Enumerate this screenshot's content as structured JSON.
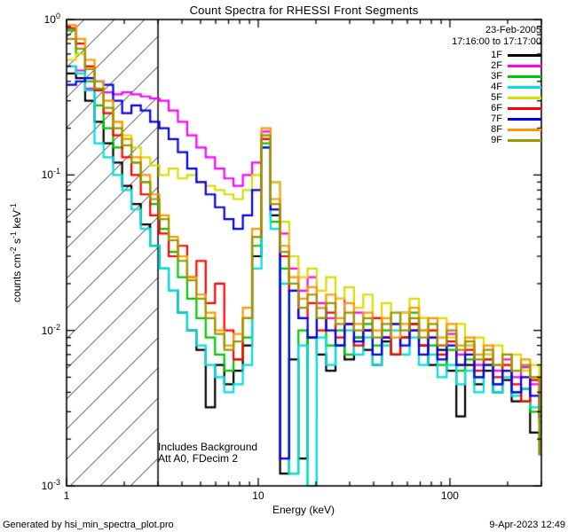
{
  "header": {
    "date": "23-Feb-2005",
    "time_range": "17:16:00 to 17:17:00"
  },
  "annotations": {
    "line1": "Includes Background",
    "line2": "Att A0, FDecim 2"
  },
  "footer": {
    "left": "Generated by hsi_min_spectra_plot.pro",
    "right": "9-Apr-2023 12:49"
  },
  "chart_data": {
    "type": "line",
    "title": "Count Spectra for RHESSI Front Segments",
    "xlabel": "Energy (keV)",
    "ylabel": "counts cm-2 s-1 keV-1",
    "ylabel_parts": [
      {
        "t": "counts cm"
      },
      {
        "s": "-2"
      },
      {
        "t": " s"
      },
      {
        "s": "-1"
      },
      {
        "t": " keV"
      },
      {
        "s": "-1"
      }
    ],
    "xscale": "log",
    "yscale": "log",
    "xlim": [
      1,
      300
    ],
    "ylim": [
      0.001,
      1
    ],
    "grid": false,
    "legend_position": "top-right",
    "hatch_xmax": 3,
    "x_ticks": [
      {
        "value": 1,
        "label": "1"
      },
      {
        "value": 10,
        "label": "10"
      },
      {
        "value": 100,
        "label": "100"
      }
    ],
    "y_ticks": [
      {
        "base": "10",
        "exp": "0"
      },
      {
        "base": "10",
        "exp": "-1"
      },
      {
        "base": "10",
        "exp": "-2"
      },
      {
        "base": "10",
        "exp": "-3"
      }
    ],
    "energy_kev": [
      1.0,
      1.12,
      1.25,
      1.4,
      1.56,
      1.75,
      1.95,
      2.18,
      2.44,
      2.73,
      3.05,
      3.41,
      3.81,
      4.26,
      4.76,
      5.32,
      5.95,
      6.65,
      7.43,
      8.31,
      9.29,
      10.4,
      11.6,
      13.0,
      14.5,
      16.2,
      18.1,
      20.2,
      22.6,
      25.3,
      28.2,
      31.6,
      35.3,
      39.5,
      44.1,
      49.3,
      55.1,
      61.6,
      68.9,
      77.0,
      86.1,
      96.2,
      108,
      120,
      134,
      150,
      168,
      188,
      210,
      235,
      262,
      293
    ],
    "series": [
      {
        "name": "1F",
        "color": "#000000",
        "values": [
          0.45,
          0.42,
          0.3,
          0.22,
          0.16,
          0.12,
          0.085,
          0.065,
          0.048,
          0.035,
          0.025,
          0.018,
          0.013,
          0.01,
          0.0075,
          0.0032,
          0.006,
          0.0045,
          0.0055,
          0.008,
          0.03,
          0.17,
          0.055,
          0.0012,
          0.0065,
          0.0015,
          0.009,
          0.007,
          0.0055,
          0.008,
          0.0065,
          0.009,
          0.0075,
          0.006,
          0.0085,
          0.007,
          0.009,
          0.011,
          0.008,
          0.006,
          0.0075,
          0.0055,
          0.0028,
          0.006,
          0.0045,
          0.0055,
          0.004,
          0.0048,
          0.0035,
          0.0042,
          0.0022,
          0.0016
        ]
      },
      {
        "name": "2F",
        "color": "#ff00ff",
        "values": [
          0.5,
          0.47,
          0.36,
          0.35,
          0.34,
          0.33,
          0.34,
          0.33,
          0.32,
          0.31,
          0.3,
          0.26,
          0.22,
          0.18,
          0.15,
          0.13,
          0.11,
          0.095,
          0.085,
          0.1,
          0.12,
          0.19,
          0.09,
          0.042,
          0.025,
          0.018,
          0.022,
          0.015,
          0.012,
          0.016,
          0.011,
          0.013,
          0.01,
          0.012,
          0.009,
          0.011,
          0.013,
          0.01,
          0.012,
          0.009,
          0.008,
          0.0095,
          0.007,
          0.008,
          0.006,
          0.007,
          0.0055,
          0.0065,
          0.005,
          0.0058,
          0.0045,
          0.0032
        ]
      },
      {
        "name": "3F",
        "color": "#00c800",
        "values": [
          0.85,
          0.6,
          0.4,
          0.28,
          0.2,
          0.15,
          0.17,
          0.12,
          0.09,
          0.065,
          0.045,
          0.032,
          0.022,
          0.016,
          0.012,
          0.009,
          0.007,
          0.0055,
          0.0065,
          0.009,
          0.035,
          0.16,
          0.05,
          0.025,
          0.0012,
          0.01,
          0.001,
          0.012,
          0.008,
          0.01,
          0.007,
          0.009,
          0.011,
          0.008,
          0.01,
          0.007,
          0.009,
          0.013,
          0.01,
          0.008,
          0.006,
          0.0075,
          0.0055,
          0.0065,
          0.005,
          0.006,
          0.0045,
          0.0055,
          0.004,
          0.0035,
          0.003,
          0.0022
        ]
      },
      {
        "name": "4F",
        "color": "#00e0e0",
        "values": [
          0.5,
          0.45,
          0.35,
          0.16,
          0.13,
          0.1,
          0.08,
          0.06,
          0.045,
          0.035,
          0.025,
          0.018,
          0.013,
          0.01,
          0.008,
          0.006,
          0.005,
          0.004,
          0.0045,
          0.006,
          0.025,
          0.15,
          0.045,
          0.02,
          0.0012,
          0.008,
          0.001,
          0.009,
          0.006,
          0.008,
          0.01,
          0.007,
          0.009,
          0.006,
          0.008,
          0.01,
          0.007,
          0.009,
          0.006,
          0.007,
          0.005,
          0.006,
          0.0045,
          0.0055,
          0.004,
          0.0065,
          0.004,
          0.005,
          0.0038,
          0.0042,
          0.0032,
          0.0028
        ]
      },
      {
        "name": "5F",
        "color": "#dcdc00",
        "values": [
          0.55,
          0.6,
          0.5,
          0.4,
          0.3,
          0.22,
          0.18,
          0.15,
          0.13,
          0.115,
          0.1,
          0.11,
          0.095,
          0.1,
          0.09,
          0.085,
          0.08,
          0.075,
          0.07,
          0.08,
          0.1,
          0.18,
          0.09,
          0.05,
          0.03,
          0.022,
          0.025,
          0.018,
          0.022,
          0.016,
          0.019,
          0.014,
          0.017,
          0.012,
          0.015,
          0.011,
          0.013,
          0.016,
          0.012,
          0.01,
          0.012,
          0.009,
          0.011,
          0.008,
          0.009,
          0.007,
          0.008,
          0.006,
          0.007,
          0.0055,
          0.006,
          0.0042
        ]
      },
      {
        "name": "6F",
        "color": "#ff0000",
        "values": [
          0.88,
          0.7,
          0.5,
          0.35,
          0.25,
          0.18,
          0.13,
          0.1,
          0.075,
          0.055,
          0.042,
          0.03,
          0.035,
          0.022,
          0.028,
          0.015,
          0.02,
          0.01,
          0.0065,
          0.012,
          0.04,
          0.17,
          0.06,
          0.03,
          0.018,
          0.012,
          0.015,
          0.01,
          0.013,
          0.009,
          0.011,
          0.008,
          0.01,
          0.012,
          0.009,
          0.007,
          0.009,
          0.011,
          0.008,
          0.01,
          0.007,
          0.0085,
          0.006,
          0.0075,
          0.0055,
          0.0065,
          0.005,
          0.006,
          0.0045,
          0.0035,
          0.0048,
          0.0026
        ]
      },
      {
        "name": "7F",
        "color": "#0000ee",
        "values": [
          0.38,
          0.4,
          0.42,
          0.4,
          0.38,
          0.3,
          0.25,
          0.28,
          0.26,
          0.22,
          0.2,
          0.17,
          0.14,
          0.11,
          0.09,
          0.075,
          0.062,
          0.052,
          0.045,
          0.055,
          0.08,
          0.15,
          0.06,
          0.0015,
          0.018,
          0.012,
          0.009,
          0.014,
          0.01,
          0.008,
          0.011,
          0.0085,
          0.01,
          0.007,
          0.009,
          0.011,
          0.008,
          0.01,
          0.007,
          0.009,
          0.0065,
          0.008,
          0.006,
          0.007,
          0.005,
          0.006,
          0.0045,
          0.0055,
          0.004,
          0.005,
          0.0038,
          0.0028
        ]
      },
      {
        "name": "8F",
        "color": "#ff9900",
        "values": [
          0.92,
          0.75,
          0.55,
          0.4,
          0.3,
          0.22,
          0.17,
          0.13,
          0.1,
          0.075,
          0.055,
          0.04,
          0.03,
          0.022,
          0.017,
          0.013,
          0.01,
          0.008,
          0.0095,
          0.014,
          0.045,
          0.2,
          0.07,
          0.035,
          0.022,
          0.016,
          0.019,
          0.014,
          0.017,
          0.012,
          0.015,
          0.011,
          0.013,
          0.01,
          0.012,
          0.009,
          0.011,
          0.014,
          0.01,
          0.012,
          0.009,
          0.011,
          0.008,
          0.009,
          0.007,
          0.008,
          0.006,
          0.007,
          0.0055,
          0.0065,
          0.005,
          0.004
        ]
      },
      {
        "name": "9F",
        "color": "#989800",
        "values": [
          0.75,
          0.65,
          0.48,
          0.36,
          0.27,
          0.2,
          0.155,
          0.12,
          0.09,
          0.07,
          0.052,
          0.038,
          0.028,
          0.021,
          0.016,
          0.012,
          0.0095,
          0.0075,
          0.0085,
          0.012,
          0.04,
          0.18,
          0.065,
          0.032,
          0.02,
          0.014,
          0.017,
          0.012,
          0.015,
          0.011,
          0.013,
          0.01,
          0.012,
          0.009,
          0.011,
          0.013,
          0.01,
          0.012,
          0.009,
          0.011,
          0.008,
          0.01,
          0.0075,
          0.0085,
          0.0065,
          0.0075,
          0.006,
          0.007,
          0.0055,
          0.006,
          0.005,
          0.0016
        ]
      }
    ]
  }
}
